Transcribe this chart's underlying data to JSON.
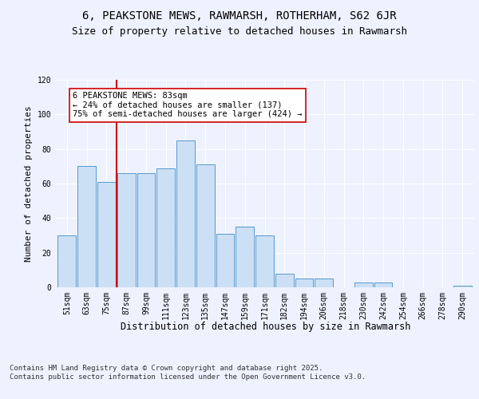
{
  "title1": "6, PEAKSTONE MEWS, RAWMARSH, ROTHERHAM, S62 6JR",
  "title2": "Size of property relative to detached houses in Rawmarsh",
  "xlabel": "Distribution of detached houses by size in Rawmarsh",
  "ylabel": "Number of detached properties",
  "categories": [
    "51sqm",
    "63sqm",
    "75sqm",
    "87sqm",
    "99sqm",
    "111sqm",
    "123sqm",
    "135sqm",
    "147sqm",
    "159sqm",
    "171sqm",
    "182sqm",
    "194sqm",
    "206sqm",
    "218sqm",
    "230sqm",
    "242sqm",
    "254sqm",
    "266sqm",
    "278sqm",
    "290sqm"
  ],
  "values": [
    30,
    70,
    61,
    66,
    66,
    69,
    85,
    71,
    31,
    35,
    30,
    8,
    5,
    5,
    0,
    3,
    3,
    0,
    0,
    0,
    1
  ],
  "bar_color": "#cce0f5",
  "bar_edge_color": "#5599cc",
  "vline_x_index": 2,
  "vline_color": "#cc0000",
  "annotation_text": "6 PEAKSTONE MEWS: 83sqm\n← 24% of detached houses are smaller (137)\n75% of semi-detached houses are larger (424) →",
  "annotation_box_color": "#cc0000",
  "ylim": [
    0,
    120
  ],
  "yticks": [
    0,
    20,
    40,
    60,
    80,
    100,
    120
  ],
  "background_color": "#eef2ff",
  "footer_text": "Contains HM Land Registry data © Crown copyright and database right 2025.\nContains public sector information licensed under the Open Government Licence v3.0.",
  "title1_fontsize": 10,
  "title2_fontsize": 9,
  "xlabel_fontsize": 8.5,
  "ylabel_fontsize": 8,
  "tick_fontsize": 7,
  "annotation_fontsize": 7.5,
  "footer_fontsize": 6.5
}
